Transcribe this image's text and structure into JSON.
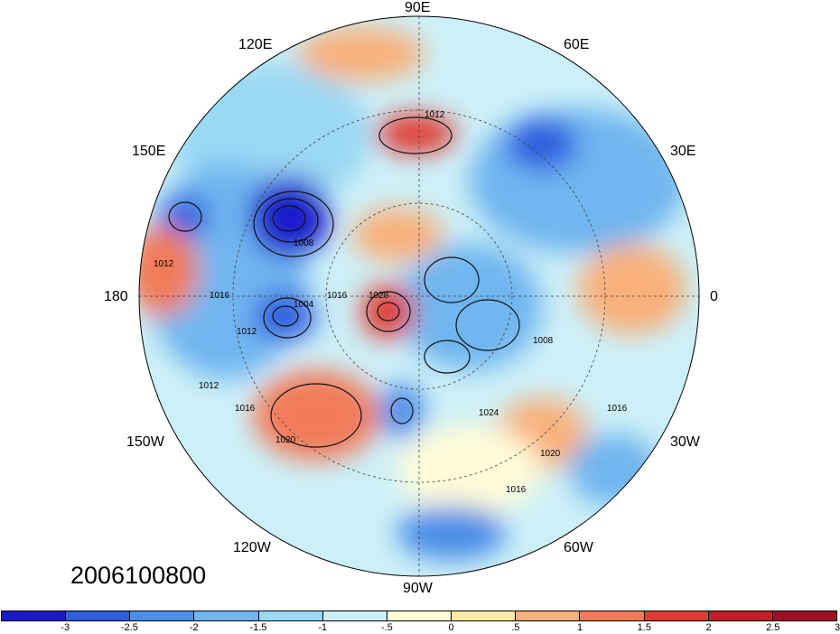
{
  "date_label": "2006100800",
  "longitude_labels": [
    "90E",
    "60E",
    "30E",
    "0",
    "30W",
    "60W",
    "90W",
    "120W",
    "150W",
    "180",
    "150E",
    "120E"
  ],
  "isobar_labels": [
    "1012",
    "1012",
    "1008",
    "1004",
    "1016",
    "1012",
    "1016",
    "1012",
    "1016",
    "1020",
    "1024",
    "1028",
    "1008",
    "1020",
    "1016",
    "1016"
  ],
  "colorbar": {
    "colors": [
      "#1a1acc",
      "#2e5ee0",
      "#4a8ee8",
      "#6fb6f0",
      "#9ad8f4",
      "#cdf0f8",
      "#fffbd9",
      "#fde9a6",
      "#f9b07a",
      "#f27a58",
      "#e03a32",
      "#c11e2a",
      "#9e0f22"
    ],
    "ticks": [
      "-3",
      "-2.5",
      "-2",
      "-1.5",
      "-1",
      "-.5",
      "0",
      ".5",
      "1",
      "1.5",
      "2",
      "2.5",
      "3"
    ]
  }
}
